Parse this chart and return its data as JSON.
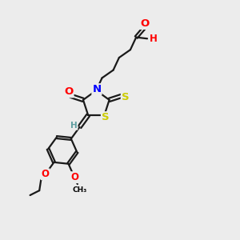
{
  "bg_color": "#ececec",
  "atom_colors": {
    "C": "#000000",
    "H": "#5f9ea0",
    "N": "#0000FF",
    "O": "#FF0000",
    "S": "#cccc00"
  },
  "bond_color": "#1a1a1a",
  "bond_width": 1.6,
  "font_size": 8.5,
  "fig_size": [
    3.0,
    3.0
  ],
  "dpi": 100,
  "xlim": [
    0.5,
    9.5
  ],
  "ylim": [
    0.5,
    9.5
  ]
}
